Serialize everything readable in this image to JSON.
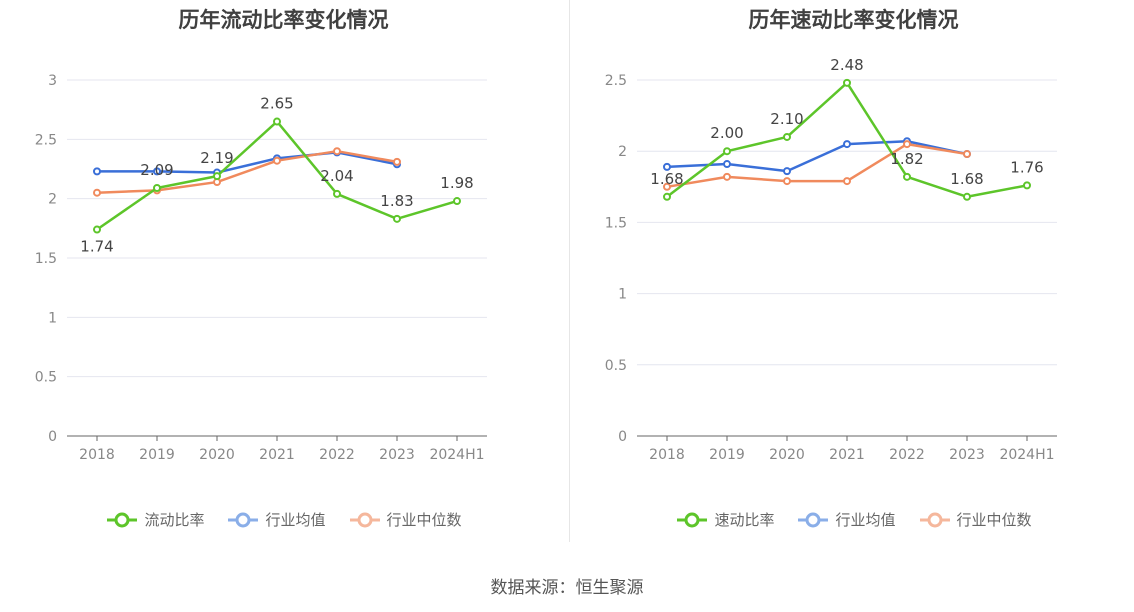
{
  "charts": [
    {
      "title": "历年流动比率变化情况",
      "legend": [
        "流动比率",
        "行业均值",
        "行业中位数"
      ]
    },
    {
      "title": "历年速动比率变化情况",
      "legend": [
        "速动比率",
        "行业均值",
        "行业中位数"
      ]
    }
  ],
  "footer": "数据来源：恒生聚源",
  "colors": {
    "company": "#5dc52a",
    "avg": "#3a6fd8",
    "median": "#f08a5d",
    "grid": "#e4e6ef",
    "axis": "#666666"
  },
  "chart_data": [
    {
      "type": "line",
      "title": "历年流动比率变化情况",
      "categories": [
        "2018",
        "2019",
        "2020",
        "2021",
        "2022",
        "2023",
        "2024H1"
      ],
      "ylim": [
        0,
        3
      ],
      "yticks": [
        "0",
        "0.5",
        "1",
        "1.5",
        "2",
        "2.5",
        "3"
      ],
      "grid": true,
      "legend_position": "bottom",
      "series": [
        {
          "name": "流动比率",
          "values": [
            1.74,
            2.09,
            2.19,
            2.65,
            2.04,
            1.83,
            1.98
          ],
          "labels": [
            "1.74",
            "2.09",
            "2.19",
            "2.65",
            "2.04",
            "1.83",
            "1.98"
          ]
        },
        {
          "name": "行业均值",
          "values": [
            2.23,
            2.23,
            2.22,
            2.34,
            2.39,
            2.29,
            null
          ]
        },
        {
          "name": "行业中位数",
          "values": [
            2.05,
            2.07,
            2.14,
            2.32,
            2.4,
            2.31,
            null
          ]
        }
      ]
    },
    {
      "type": "line",
      "title": "历年速动比率变化情况",
      "categories": [
        "2018",
        "2019",
        "2020",
        "2021",
        "2022",
        "2023",
        "2024H1"
      ],
      "ylim": [
        0,
        2.5
      ],
      "yticks": [
        "0",
        "0.5",
        "1",
        "1.5",
        "2",
        "2.5"
      ],
      "grid": true,
      "legend_position": "bottom",
      "series": [
        {
          "name": "速动比率",
          "values": [
            1.68,
            2.0,
            2.1,
            2.48,
            1.82,
            1.68,
            1.76
          ],
          "labels": [
            "1.68",
            "2.00",
            "2.10",
            "2.48",
            "1.82",
            "1.68",
            "1.76"
          ]
        },
        {
          "name": "行业均值",
          "values": [
            1.89,
            1.91,
            1.86,
            2.05,
            2.07,
            1.98,
            null
          ]
        },
        {
          "name": "行业中位数",
          "values": [
            1.75,
            1.82,
            1.79,
            1.79,
            2.05,
            1.98,
            null
          ]
        }
      ]
    }
  ]
}
